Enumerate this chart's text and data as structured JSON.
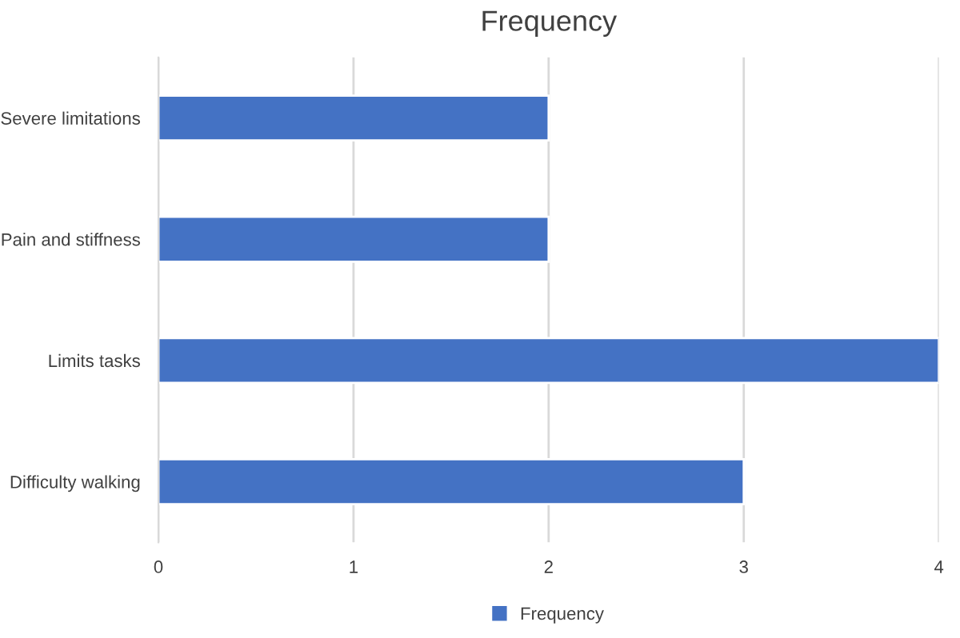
{
  "chart_data": {
    "type": "bar",
    "orientation": "horizontal",
    "title": "Frequency",
    "categories": [
      "Severe limitations",
      "Pain and stiffness",
      "Limits tasks",
      "Difficulty walking"
    ],
    "series": [
      {
        "name": "Frequency",
        "color": "#4472c4",
        "values": [
          2,
          2,
          4,
          3
        ]
      }
    ],
    "xlim": [
      0,
      4
    ],
    "xticks": [
      0,
      1,
      2,
      3,
      4
    ],
    "grid": "x",
    "legend": "bottom"
  }
}
